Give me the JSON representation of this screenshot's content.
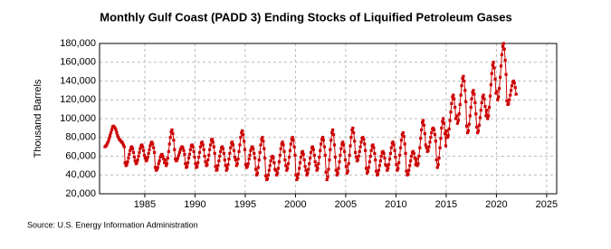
{
  "chart_data": {
    "type": "line",
    "title": "Monthly Gulf Coast (PADD 3) Ending Stocks of Liquified Petroleum Gases",
    "y_label": "Thousand Barrels",
    "source": "Source: U.S. Energy Information Administration",
    "color": "#cc0000",
    "grid": true,
    "xlim": [
      1980.5,
      2026
    ],
    "xticks": [
      1985,
      1990,
      1995,
      2000,
      2005,
      2010,
      2015,
      2020,
      2025
    ],
    "ylim": [
      20000,
      180000
    ],
    "yticks": [
      {
        "value": 20000,
        "label": "20,000"
      },
      {
        "value": 40000,
        "label": "40,000"
      },
      {
        "value": 60000,
        "label": "60,000"
      },
      {
        "value": 80000,
        "label": "80,000"
      },
      {
        "value": 100000,
        "label": "100,000"
      },
      {
        "value": 120000,
        "label": "120,000"
      },
      {
        "value": 140000,
        "label": "140,000"
      },
      {
        "value": 160000,
        "label": "160,000"
      },
      {
        "value": 180000,
        "label": "180,000"
      }
    ],
    "x": [
      1981.04,
      1981.13,
      1981.21,
      1981.29,
      1981.38,
      1981.46,
      1981.54,
      1981.63,
      1981.71,
      1981.79,
      1981.88,
      1981.96,
      1982.04,
      1982.13,
      1982.21,
      1982.29,
      1982.38,
      1982.46,
      1982.54,
      1982.63,
      1982.71,
      1982.79,
      1982.88,
      1982.96,
      1983.04,
      1983.13,
      1983.21,
      1983.29,
      1983.38,
      1983.46,
      1983.54,
      1983.63,
      1983.71,
      1983.79,
      1983.88,
      1983.96,
      1984.04,
      1984.13,
      1984.21,
      1984.29,
      1984.38,
      1984.46,
      1984.54,
      1984.63,
      1984.71,
      1984.79,
      1984.88,
      1984.96,
      1985.04,
      1985.13,
      1985.21,
      1985.29,
      1985.38,
      1985.46,
      1985.54,
      1985.63,
      1985.71,
      1985.79,
      1985.88,
      1985.96,
      1986.04,
      1986.13,
      1986.21,
      1986.29,
      1986.38,
      1986.46,
      1986.54,
      1986.63,
      1986.71,
      1986.79,
      1986.88,
      1986.96,
      1987.04,
      1987.13,
      1987.21,
      1987.29,
      1987.38,
      1987.46,
      1987.54,
      1987.63,
      1987.71,
      1987.79,
      1987.88,
      1987.96,
      1988.04,
      1988.13,
      1988.21,
      1988.29,
      1988.38,
      1988.46,
      1988.54,
      1988.63,
      1988.71,
      1988.79,
      1988.88,
      1988.96,
      1989.04,
      1989.13,
      1989.21,
      1989.29,
      1989.38,
      1989.46,
      1989.54,
      1989.63,
      1989.71,
      1989.79,
      1989.88,
      1989.96,
      1990.04,
      1990.13,
      1990.21,
      1990.29,
      1990.38,
      1990.46,
      1990.54,
      1990.63,
      1990.71,
      1990.79,
      1990.88,
      1990.96,
      1991.04,
      1991.13,
      1991.21,
      1991.29,
      1991.38,
      1991.46,
      1991.54,
      1991.63,
      1991.71,
      1991.79,
      1991.88,
      1991.96,
      1992.04,
      1992.13,
      1992.21,
      1992.29,
      1992.38,
      1992.46,
      1992.54,
      1992.63,
      1992.71,
      1992.79,
      1992.88,
      1992.96,
      1993.04,
      1993.13,
      1993.21,
      1993.29,
      1993.38,
      1993.46,
      1993.54,
      1993.63,
      1993.71,
      1993.79,
      1993.88,
      1993.96,
      1994.04,
      1994.13,
      1994.21,
      1994.29,
      1994.38,
      1994.46,
      1994.54,
      1994.63,
      1994.71,
      1994.79,
      1994.88,
      1994.96,
      1995.04,
      1995.13,
      1995.21,
      1995.29,
      1995.38,
      1995.46,
      1995.54,
      1995.63,
      1995.71,
      1995.79,
      1995.88,
      1995.96,
      1996.04,
      1996.13,
      1996.21,
      1996.29,
      1996.38,
      1996.46,
      1996.54,
      1996.63,
      1996.71,
      1996.79,
      1996.88,
      1996.96,
      1997.04,
      1997.13,
      1997.21,
      1997.29,
      1997.38,
      1997.46,
      1997.54,
      1997.63,
      1997.71,
      1997.79,
      1997.88,
      1997.96,
      1998.04,
      1998.13,
      1998.21,
      1998.29,
      1998.38,
      1998.46,
      1998.54,
      1998.63,
      1998.71,
      1998.79,
      1998.88,
      1998.96,
      1999.04,
      1999.13,
      1999.21,
      1999.29,
      1999.38,
      1999.46,
      1999.54,
      1999.63,
      1999.71,
      1999.79,
      1999.88,
      1999.96,
      2000.04,
      2000.13,
      2000.21,
      2000.29,
      2000.38,
      2000.46,
      2000.54,
      2000.63,
      2000.71,
      2000.79,
      2000.88,
      2000.96,
      2001.04,
      2001.13,
      2001.21,
      2001.29,
      2001.38,
      2001.46,
      2001.54,
      2001.63,
      2001.71,
      2001.79,
      2001.88,
      2001.96,
      2002.04,
      2002.13,
      2002.21,
      2002.29,
      2002.38,
      2002.46,
      2002.54,
      2002.63,
      2002.71,
      2002.79,
      2002.88,
      2002.96,
      2003.04,
      2003.13,
      2003.21,
      2003.29,
      2003.38,
      2003.46,
      2003.54,
      2003.63,
      2003.71,
      2003.79,
      2003.88,
      2003.96,
      2004.04,
      2004.13,
      2004.21,
      2004.29,
      2004.38,
      2004.46,
      2004.54,
      2004.63,
      2004.71,
      2004.79,
      2004.88,
      2004.96,
      2005.04,
      2005.13,
      2005.21,
      2005.29,
      2005.38,
      2005.46,
      2005.54,
      2005.63,
      2005.71,
      2005.79,
      2005.88,
      2005.96,
      2006.04,
      2006.13,
      2006.21,
      2006.29,
      2006.38,
      2006.46,
      2006.54,
      2006.63,
      2006.71,
      2006.79,
      2006.88,
      2006.96,
      2007.04,
      2007.13,
      2007.21,
      2007.29,
      2007.38,
      2007.46,
      2007.54,
      2007.63,
      2007.71,
      2007.79,
      2007.88,
      2007.96,
      2008.04,
      2008.13,
      2008.21,
      2008.29,
      2008.38,
      2008.46,
      2008.54,
      2008.63,
      2008.71,
      2008.79,
      2008.88,
      2008.96,
      2009.04,
      2009.13,
      2009.21,
      2009.29,
      2009.38,
      2009.46,
      2009.54,
      2009.63,
      2009.71,
      2009.79,
      2009.88,
      2009.96,
      2010.04,
      2010.13,
      2010.21,
      2010.29,
      2010.38,
      2010.46,
      2010.54,
      2010.63,
      2010.71,
      2010.79,
      2010.88,
      2010.96,
      2011.04,
      2011.13,
      2011.21,
      2011.29,
      2011.38,
      2011.46,
      2011.54,
      2011.63,
      2011.71,
      2011.79,
      2011.88,
      2011.96,
      2012.04,
      2012.13,
      2012.21,
      2012.29,
      2012.38,
      2012.46,
      2012.54,
      2012.63,
      2012.71,
      2012.79,
      2012.88,
      2012.96,
      2013.04,
      2013.13,
      2013.21,
      2013.29,
      2013.38,
      2013.46,
      2013.54,
      2013.63,
      2013.71,
      2013.79,
      2013.88,
      2013.96,
      2014.04,
      2014.13,
      2014.21,
      2014.29,
      2014.38,
      2014.46,
      2014.54,
      2014.63,
      2014.71,
      2014.79,
      2014.88,
      2014.96,
      2015.04,
      2015.13,
      2015.21,
      2015.29,
      2015.38,
      2015.46,
      2015.54,
      2015.63,
      2015.71,
      2015.79,
      2015.88,
      2015.96,
      2016.04,
      2016.13,
      2016.21,
      2016.29,
      2016.38,
      2016.46,
      2016.54,
      2016.63,
      2016.71,
      2016.79,
      2016.88,
      2016.96,
      2017.04,
      2017.13,
      2017.21,
      2017.29,
      2017.38,
      2017.46,
      2017.54,
      2017.63,
      2017.71,
      2017.79,
      2017.88,
      2017.96,
      2018.04,
      2018.13,
      2018.21,
      2018.29,
      2018.38,
      2018.46,
      2018.54,
      2018.63,
      2018.71,
      2018.79,
      2018.88,
      2018.96,
      2019.04,
      2019.13,
      2019.21,
      2019.29,
      2019.38,
      2019.46,
      2019.54,
      2019.63,
      2019.71,
      2019.79,
      2019.88,
      2019.96,
      2020.04,
      2020.13,
      2020.21,
      2020.29,
      2020.38,
      2020.46,
      2020.54,
      2020.63,
      2020.71,
      2020.79,
      2020.88,
      2020.96,
      2021.04,
      2021.13,
      2021.21,
      2021.29,
      2021.38,
      2021.46,
      2021.54,
      2021.63,
      2021.71,
      2021.79,
      2021.88,
      2021.96
    ],
    "values": [
      70000,
      71000,
      72000,
      74000,
      76000,
      79000,
      82000,
      85000,
      88000,
      91000,
      92000,
      91000,
      90000,
      88000,
      85000,
      82000,
      80000,
      78000,
      77000,
      76000,
      75000,
      74000,
      72000,
      70000,
      53000,
      50000,
      51000,
      54000,
      58000,
      62000,
      66000,
      69000,
      70000,
      68000,
      64000,
      59000,
      55000,
      52000,
      53000,
      56000,
      60000,
      64000,
      68000,
      71000,
      72000,
      70000,
      66000,
      61000,
      58000,
      55000,
      56000,
      59000,
      63000,
      67000,
      71000,
      74000,
      75000,
      73000,
      69000,
      64000,
      48000,
      45000,
      46000,
      48000,
      52000,
      55000,
      59000,
      61000,
      62000,
      60000,
      57000,
      53000,
      56000,
      50000,
      52000,
      58000,
      65000,
      73000,
      80000,
      86000,
      88000,
      84000,
      77000,
      67000,
      57000,
      55000,
      56000,
      58000,
      61000,
      64000,
      67000,
      69000,
      70000,
      69000,
      66000,
      62000,
      52000,
      48000,
      49000,
      53000,
      58000,
      62000,
      67000,
      71000,
      72000,
      70000,
      65000,
      59000,
      52000,
      48000,
      49000,
      53000,
      59000,
      64000,
      70000,
      74000,
      75000,
      72000,
      67000,
      60000,
      54000,
      50000,
      51000,
      56000,
      61000,
      67000,
      72000,
      77000,
      78000,
      75000,
      70000,
      63000,
      49000,
      45000,
      46000,
      50000,
      55000,
      60000,
      65000,
      69000,
      70000,
      68000,
      63000,
      56000,
      50000,
      45000,
      47000,
      51000,
      57000,
      63000,
      69000,
      74000,
      75000,
      72000,
      66000,
      59000,
      56000,
      50000,
      52000,
      57000,
      65000,
      72000,
      80000,
      85000,
      87000,
      83000,
      76000,
      67000,
      51000,
      48000,
      49000,
      52000,
      57000,
      61000,
      66000,
      69000,
      70000,
      68000,
      63000,
      58000,
      46000,
      40000,
      42000,
      48000,
      56000,
      64000,
      72000,
      78000,
      80000,
      76000,
      68000,
      58000,
      39000,
      35000,
      36000,
      40000,
      45000,
      50000,
      55000,
      59000,
      60000,
      58000,
      53000,
      46000,
      45000,
      40000,
      42000,
      47000,
      54000,
      61000,
      68000,
      73000,
      75000,
      72000,
      65000,
      56000,
      50000,
      45000,
      47000,
      52000,
      59000,
      66000,
      73000,
      78000,
      80000,
      77000,
      70000,
      61000,
      40000,
      35000,
      37000,
      41000,
      47000,
      53000,
      59000,
      64000,
      65000,
      62000,
      56000,
      49000,
      45000,
      40000,
      42000,
      46000,
      52000,
      58000,
      64000,
      69000,
      70000,
      67000,
      61000,
      54000,
      50000,
      45000,
      47000,
      52000,
      59000,
      66000,
      73000,
      78000,
      80000,
      77000,
      70000,
      61000,
      43000,
      35000,
      38000,
      46000,
      56000,
      67000,
      77000,
      85000,
      88000,
      83000,
      72000,
      59000,
      45000,
      40000,
      42000,
      47000,
      54000,
      61000,
      68000,
      73000,
      75000,
      72000,
      65000,
      56000,
      49000,
      42000,
      44000,
      52000,
      61000,
      71000,
      80000,
      88000,
      90000,
      85000,
      76000,
      64000,
      59000,
      55000,
      56000,
      60000,
      65000,
      70000,
      75000,
      79000,
      80000,
      78000,
      73000,
      66000,
      47000,
      42000,
      44000,
      48000,
      54000,
      60000,
      66000,
      71000,
      72000,
      69000,
      63000,
      56000,
      44000,
      40000,
      41000,
      45000,
      50000,
      55000,
      60000,
      64000,
      65000,
      63000,
      58000,
      51000,
      50000,
      45000,
      47000,
      51000,
      57000,
      63000,
      69000,
      74000,
      75000,
      72000,
      66000,
      59000,
      51000,
      45000,
      47000,
      53000,
      61000,
      69000,
      77000,
      83000,
      85000,
      81000,
      73000,
      63000,
      44000,
      40000,
      41000,
      45000,
      50000,
      55000,
      60000,
      64000,
      65000,
      63000,
      58000,
      51000,
      57000,
      50000,
      52000,
      60000,
      69000,
      79000,
      88000,
      96000,
      98000,
      93000,
      84000,
      72000,
      69000,
      65000,
      66000,
      70000,
      75000,
      80000,
      85000,
      89000,
      90000,
      88000,
      83000,
      76000,
      56000,
      48000,
      51000,
      58000,
      69000,
      79000,
      90000,
      97000,
      100000,
      95000,
      84000,
      71000,
      87000,
      80000,
      82000,
      89000,
      98000,
      107000,
      116000,
      123000,
      125000,
      121000,
      112000,
      100000,
      103000,
      95000,
      98000,
      105000,
      115000,
      125000,
      135000,
      143000,
      145000,
      140000,
      130000,
      118000,
      92000,
      85000,
      87000,
      94000,
      103000,
      112000,
      121000,
      128000,
      130000,
      126000,
      117000,
      105000,
      91000,
      85000,
      87000,
      93000,
      101000,
      109000,
      117000,
      123000,
      125000,
      121000,
      113000,
      103000,
      109000,
      100000,
      103000,
      112000,
      124000,
      136000,
      148000,
      157000,
      160000,
      154000,
      142000,
      127000,
      129000,
      120000,
      123000,
      132000,
      144000,
      156000,
      168000,
      177000,
      180000,
      174000,
      162000,
      147000,
      119000,
      115000,
      116000,
      120000,
      125000,
      130000,
      135000,
      139000,
      140000,
      138000,
      133000,
      126000
    ]
  }
}
